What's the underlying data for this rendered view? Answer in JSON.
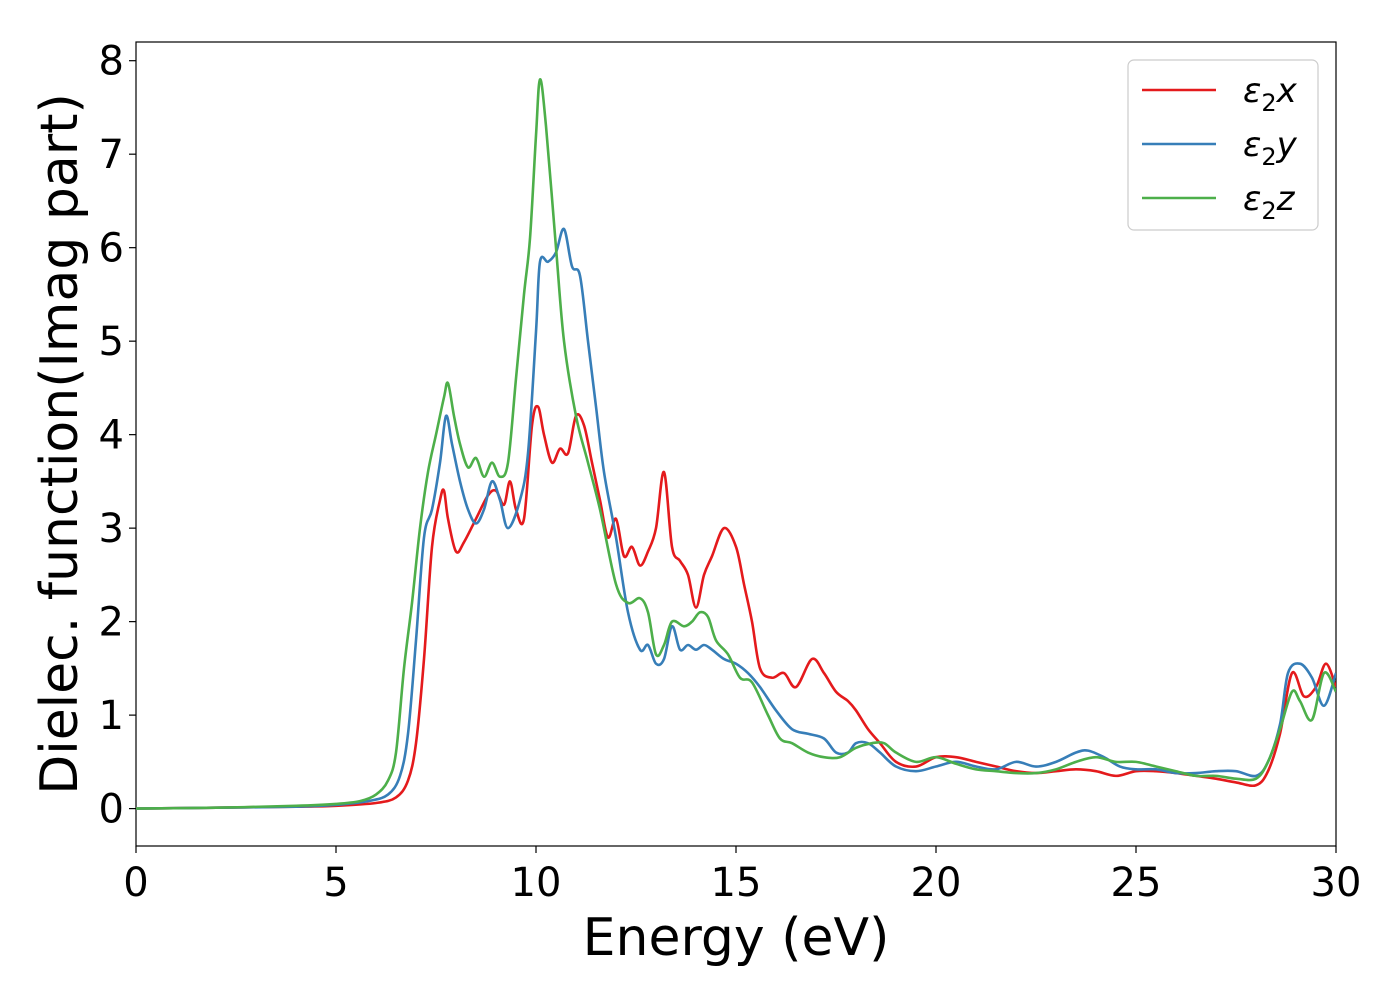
{
  "chart_data": {
    "type": "line",
    "title": "",
    "xlabel": "Energy (eV)",
    "ylabel": "Dielec. function(Imag part)",
    "xlim": [
      0,
      30
    ],
    "ylim": [
      -0.4,
      8.2
    ],
    "x_ticks": [
      0,
      5,
      10,
      15,
      20,
      25,
      30
    ],
    "y_ticks": [
      0,
      1,
      2,
      3,
      4,
      5,
      6,
      7,
      8
    ],
    "grid": false,
    "legend_position": "top-right",
    "series": [
      {
        "name": "ε2x",
        "legend_main": "ε",
        "legend_sub": "2",
        "legend_suffix": "x",
        "color": "#e41a1c",
        "x": [
          0,
          2,
          4,
          5,
          6,
          6.5,
          6.8,
          7.0,
          7.2,
          7.4,
          7.6,
          7.7,
          7.8,
          8.0,
          8.2,
          8.5,
          8.8,
          9.0,
          9.2,
          9.35,
          9.5,
          9.7,
          9.9,
          10.05,
          10.2,
          10.4,
          10.6,
          10.8,
          11.0,
          11.2,
          11.4,
          11.6,
          11.8,
          12.0,
          12.2,
          12.4,
          12.6,
          12.8,
          13.0,
          13.2,
          13.4,
          13.6,
          13.8,
          14.0,
          14.2,
          14.4,
          14.7,
          15.0,
          15.2,
          15.4,
          15.6,
          15.9,
          16.2,
          16.5,
          16.9,
          17.2,
          17.5,
          17.8,
          18.0,
          18.3,
          18.6,
          19.0,
          19.5,
          20.0,
          20.5,
          21.0,
          21.5,
          22.0,
          22.5,
          23.0,
          23.5,
          24.0,
          24.5,
          25.0,
          25.5,
          26.0,
          26.5,
          27.0,
          27.5,
          28.0,
          28.3,
          28.6,
          28.9,
          29.2,
          29.5,
          29.75,
          30
        ],
        "y": [
          0.0,
          0.01,
          0.02,
          0.03,
          0.06,
          0.12,
          0.3,
          0.7,
          1.6,
          2.8,
          3.3,
          3.4,
          3.1,
          2.75,
          2.85,
          3.1,
          3.35,
          3.4,
          3.25,
          3.5,
          3.2,
          3.1,
          4.1,
          4.3,
          4.0,
          3.7,
          3.85,
          3.8,
          4.2,
          4.1,
          3.7,
          3.3,
          2.9,
          3.1,
          2.7,
          2.8,
          2.6,
          2.75,
          3.0,
          3.6,
          2.8,
          2.65,
          2.5,
          2.15,
          2.5,
          2.7,
          3.0,
          2.8,
          2.4,
          2.0,
          1.5,
          1.4,
          1.45,
          1.3,
          1.6,
          1.45,
          1.25,
          1.15,
          1.05,
          0.85,
          0.7,
          0.5,
          0.45,
          0.55,
          0.55,
          0.5,
          0.45,
          0.4,
          0.38,
          0.4,
          0.42,
          0.4,
          0.35,
          0.4,
          0.4,
          0.38,
          0.35,
          0.32,
          0.28,
          0.25,
          0.4,
          0.8,
          1.45,
          1.2,
          1.3,
          1.55,
          1.3
        ]
      },
      {
        "name": "ε2y",
        "legend_main": "ε",
        "legend_sub": "2",
        "legend_suffix": "y",
        "color": "#377eb8",
        "x": [
          0,
          2,
          4,
          5,
          5.8,
          6.3,
          6.6,
          6.8,
          7.0,
          7.2,
          7.4,
          7.6,
          7.75,
          7.9,
          8.1,
          8.3,
          8.5,
          8.7,
          8.9,
          9.1,
          9.3,
          9.6,
          9.8,
          10.0,
          10.1,
          10.3,
          10.5,
          10.7,
          10.9,
          11.1,
          11.3,
          11.5,
          11.7,
          12.0,
          12.3,
          12.6,
          12.8,
          13.0,
          13.2,
          13.4,
          13.6,
          13.8,
          14.0,
          14.2,
          14.4,
          14.7,
          15.0,
          15.3,
          15.6,
          16.0,
          16.4,
          16.8,
          17.2,
          17.5,
          17.8,
          18.0,
          18.3,
          18.6,
          19.0,
          19.5,
          20.0,
          20.5,
          21.0,
          21.5,
          22.0,
          22.5,
          23.0,
          23.5,
          23.8,
          24.2,
          24.6,
          25.0,
          25.5,
          26.0,
          26.5,
          27.0,
          27.5,
          28.0,
          28.3,
          28.6,
          28.8,
          29.1,
          29.4,
          29.7,
          30
        ],
        "y": [
          0.0,
          0.01,
          0.02,
          0.04,
          0.08,
          0.15,
          0.35,
          0.8,
          1.8,
          2.9,
          3.2,
          3.7,
          4.2,
          3.9,
          3.5,
          3.2,
          3.05,
          3.2,
          3.5,
          3.3,
          3.0,
          3.3,
          3.8,
          5.1,
          5.85,
          5.85,
          5.95,
          6.2,
          5.8,
          5.7,
          5.0,
          4.3,
          3.6,
          2.9,
          2.1,
          1.7,
          1.75,
          1.55,
          1.6,
          1.95,
          1.7,
          1.75,
          1.7,
          1.75,
          1.7,
          1.6,
          1.55,
          1.45,
          1.3,
          1.05,
          0.85,
          0.8,
          0.75,
          0.6,
          0.6,
          0.7,
          0.7,
          0.6,
          0.45,
          0.4,
          0.45,
          0.5,
          0.45,
          0.42,
          0.5,
          0.45,
          0.5,
          0.6,
          0.62,
          0.55,
          0.45,
          0.42,
          0.42,
          0.38,
          0.38,
          0.4,
          0.4,
          0.35,
          0.5,
          0.9,
          1.45,
          1.55,
          1.4,
          1.1,
          1.45
        ]
      },
      {
        "name": "ε2z",
        "legend_main": "ε",
        "legend_sub": "2",
        "legend_suffix": "z",
        "color": "#4daf4a",
        "x": [
          0,
          2,
          4,
          5,
          5.6,
          6.0,
          6.3,
          6.5,
          6.7,
          6.9,
          7.1,
          7.3,
          7.5,
          7.7,
          7.8,
          7.95,
          8.1,
          8.3,
          8.5,
          8.7,
          8.9,
          9.1,
          9.3,
          9.5,
          9.7,
          9.85,
          10.0,
          10.1,
          10.25,
          10.5,
          10.7,
          11.0,
          11.3,
          11.6,
          12.0,
          12.3,
          12.6,
          12.8,
          13.0,
          13.2,
          13.4,
          13.7,
          13.9,
          14.1,
          14.3,
          14.5,
          14.8,
          15.1,
          15.4,
          15.8,
          16.1,
          16.4,
          16.8,
          17.2,
          17.6,
          18.0,
          18.4,
          18.7,
          19.0,
          19.5,
          20.0,
          20.5,
          21.0,
          21.5,
          22.0,
          22.5,
          23.0,
          23.5,
          24.0,
          24.5,
          25.0,
          25.5,
          26.0,
          26.5,
          27.0,
          27.5,
          28.0,
          28.3,
          28.6,
          28.9,
          29.1,
          29.4,
          29.7,
          30
        ],
        "y": [
          0.0,
          0.01,
          0.03,
          0.05,
          0.08,
          0.15,
          0.3,
          0.6,
          1.5,
          2.2,
          3.0,
          3.6,
          4.0,
          4.4,
          4.55,
          4.2,
          3.9,
          3.65,
          3.75,
          3.55,
          3.7,
          3.55,
          3.7,
          4.6,
          5.5,
          6.1,
          7.2,
          7.8,
          7.3,
          6.0,
          5.0,
          4.2,
          3.7,
          3.2,
          2.4,
          2.2,
          2.25,
          2.1,
          1.65,
          1.75,
          2.0,
          1.95,
          2.0,
          2.1,
          2.05,
          1.8,
          1.65,
          1.4,
          1.35,
          1.0,
          0.75,
          0.7,
          0.6,
          0.55,
          0.55,
          0.65,
          0.7,
          0.7,
          0.6,
          0.5,
          0.55,
          0.48,
          0.42,
          0.4,
          0.38,
          0.38,
          0.42,
          0.5,
          0.55,
          0.5,
          0.5,
          0.45,
          0.4,
          0.35,
          0.35,
          0.32,
          0.32,
          0.5,
          0.85,
          1.25,
          1.15,
          0.95,
          1.45,
          1.25
        ]
      }
    ]
  }
}
